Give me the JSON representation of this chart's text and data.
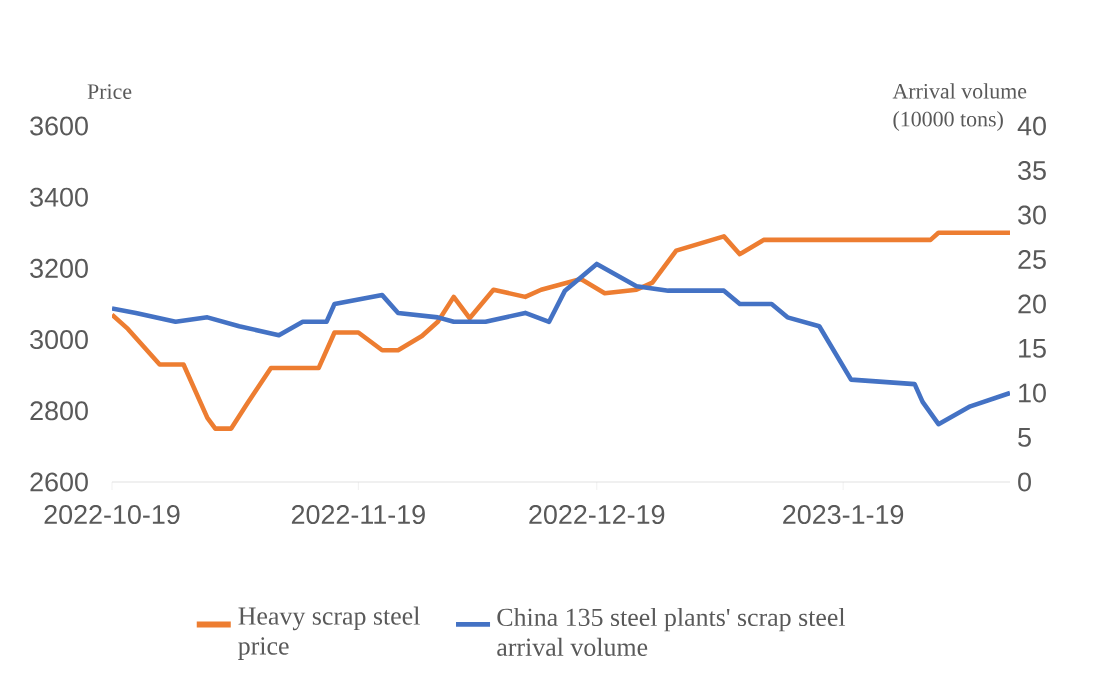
{
  "chart_data": {
    "type": "line",
    "ylabel": "Price",
    "y2label": "Arrival volume\n(10000 tons)",
    "xlim": [
      "2022-10-19",
      "2023-02-09"
    ],
    "xticks": [
      "2022-10-19",
      "2022-11-19",
      "2022-12-19",
      {
        "value": "2023-01-19",
        "label": "2023-1-19"
      }
    ],
    "ylim": [
      2600,
      3600
    ],
    "yticks": [
      2600,
      2800,
      3000,
      3200,
      3400,
      3600
    ],
    "y2lim": [
      0,
      40
    ],
    "y2ticks": [
      0,
      5,
      10,
      15,
      20,
      25,
      30,
      35,
      40
    ],
    "legend": "bottom",
    "grid": false,
    "series": [
      {
        "name": "Heavy scrap steel price",
        "color": "#ed7d31",
        "x": [
          "2022-10-19",
          "2022-10-21",
          "2022-10-25",
          "2022-10-28",
          "2022-10-31",
          "2022-11-01",
          "2022-11-03",
          "2022-11-05",
          "2022-11-08",
          "2022-11-14",
          "2022-11-16",
          "2022-11-19",
          "2022-11-22",
          "2022-11-24",
          "2022-11-27",
          "2022-11-29",
          "2022-12-01",
          "2022-12-03",
          "2022-12-06",
          "2022-12-10",
          "2022-12-12",
          "2022-12-17",
          "2022-12-20",
          "2022-12-24",
          "2022-12-26",
          "2022-12-29",
          "2023-01-04",
          "2023-01-06",
          "2023-01-09",
          "2023-01-30",
          "2023-01-31",
          "2023-02-09"
        ],
        "values": [
          3070,
          3030,
          2930,
          2930,
          2780,
          2750,
          2750,
          2820,
          2920,
          2920,
          3020,
          3020,
          2970,
          2970,
          3010,
          3050,
          3120,
          3060,
          3140,
          3120,
          3140,
          3170,
          3130,
          3140,
          3160,
          3250,
          3290,
          3240,
          3280,
          3280,
          3300,
          3300
        ]
      },
      {
        "name": "China 135 steel plants' scrap steel arrival volume",
        "color": "#4472c4",
        "axis": "y2",
        "x": [
          "2022-10-19",
          "2022-10-22",
          "2022-10-27",
          "2022-10-31",
          "2022-11-04",
          "2022-11-09",
          "2022-11-12",
          "2022-11-15",
          "2022-11-16",
          "2022-11-22",
          "2022-11-24",
          "2022-11-29",
          "2022-12-01",
          "2022-12-05",
          "2022-12-10",
          "2022-12-13",
          "2022-12-15",
          "2022-12-19",
          "2022-12-24",
          "2022-12-28",
          "2023-01-04",
          "2023-01-06",
          "2023-01-10",
          "2023-01-12",
          "2023-01-16",
          "2023-01-20",
          "2023-01-28",
          "2023-01-29",
          "2023-01-31",
          "2023-02-02",
          "2023-02-04",
          "2023-02-09"
        ],
        "values": [
          19.5,
          19,
          18,
          18.5,
          17.5,
          16.5,
          18,
          18,
          20,
          21,
          19,
          18.5,
          18,
          18,
          19,
          18,
          21.5,
          24.5,
          22,
          21.5,
          21.5,
          20,
          20,
          18.5,
          17.5,
          11.5,
          11,
          9,
          6.5,
          7.5,
          8.5,
          10
        ]
      }
    ]
  }
}
